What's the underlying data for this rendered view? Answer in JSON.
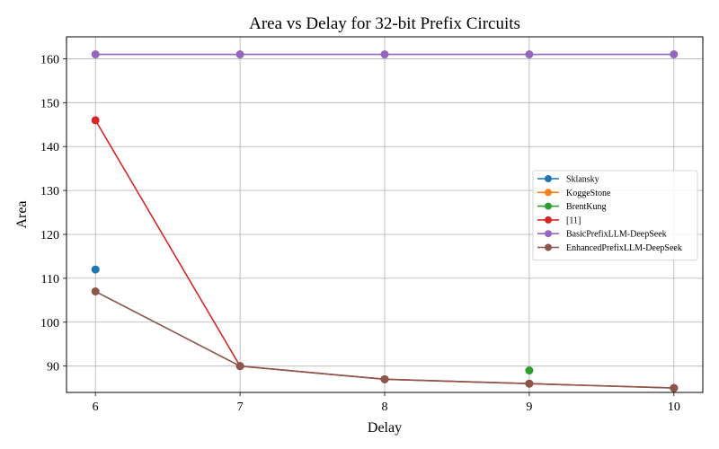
{
  "chart_data": {
    "type": "line",
    "title": "Area vs Delay for 32-bit Prefix Circuits",
    "xlabel": "Delay",
    "ylabel": "Area",
    "xlim": [
      5.8,
      10.2
    ],
    "ylim": [
      84,
      165
    ],
    "xticks": [
      6,
      7,
      8,
      9,
      10
    ],
    "yticks": [
      90,
      100,
      110,
      120,
      130,
      140,
      150,
      160
    ],
    "grid": true,
    "legend_position": "center-right",
    "series": [
      {
        "name": "Sklansky",
        "color": "#1f77b4",
        "points": [
          [
            6,
            112
          ]
        ]
      },
      {
        "name": "KoggeStone",
        "color": "#ff7f0e",
        "points": []
      },
      {
        "name": "BrentKung",
        "color": "#2ca02c",
        "points": [
          [
            9,
            89
          ]
        ]
      },
      {
        "name": "[11]",
        "color": "#d62728",
        "points": [
          [
            6,
            146
          ],
          [
            7,
            90
          ],
          [
            8,
            87
          ],
          [
            9,
            86
          ],
          [
            10,
            85
          ]
        ]
      },
      {
        "name": "BasicPrefixLLM-DeepSeek",
        "color": "#9467bd",
        "points": [
          [
            6,
            161
          ],
          [
            7,
            161
          ],
          [
            8,
            161
          ],
          [
            9,
            161
          ],
          [
            10,
            161
          ]
        ]
      },
      {
        "name": "EnhancedPrefixLLM-DeepSeek",
        "color": "#8c564b",
        "points": [
          [
            6,
            107
          ],
          [
            7,
            90
          ],
          [
            8,
            87
          ],
          [
            9,
            86
          ],
          [
            10,
            85
          ]
        ]
      }
    ]
  }
}
